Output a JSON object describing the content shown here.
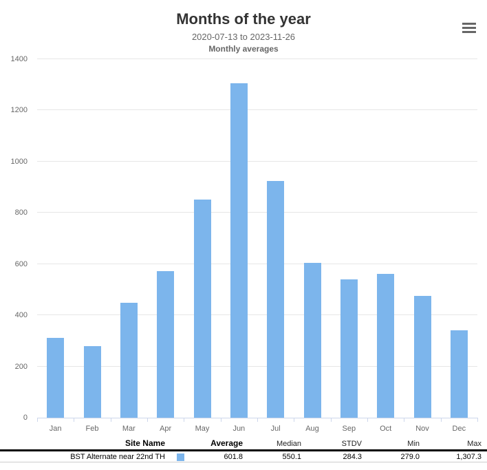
{
  "chart": {
    "title": "Months of the year",
    "subtitle": "2020-07-13 to 2023-11-26",
    "subtitle2": "Monthly averages"
  },
  "chart_data": {
    "type": "bar",
    "title": "Months of the year",
    "subtitle": "2020-07-13 to 2023-11-26",
    "caption": "Monthly averages",
    "categories": [
      "Jan",
      "Feb",
      "Mar",
      "Apr",
      "May",
      "Jun",
      "Jul",
      "Aug",
      "Sep",
      "Oct",
      "Nov",
      "Dec"
    ],
    "series": [
      {
        "name": "BST Alternate near 22nd TH",
        "color": "#7cb5ec",
        "values": [
          311,
          279,
          450,
          573,
          851,
          1307.3,
          925,
          605,
          540,
          561,
          477,
          340
        ]
      }
    ],
    "xlabel": "",
    "ylabel": "",
    "ylim": [
      0,
      1400
    ],
    "yticks": [
      0,
      200,
      400,
      600,
      800,
      1000,
      1200,
      1400
    ],
    "grid": true,
    "legend_position": "table-below",
    "stats": {
      "average": 601.8,
      "median": 550.1,
      "stdv": 284.3,
      "min": 279.0,
      "max": 1307.3
    }
  },
  "table": {
    "headers": {
      "site": "Site Name",
      "average": "Average",
      "median": "Median",
      "stdv": "STDV",
      "min": "Min",
      "max": "Max"
    },
    "row": {
      "site": "BST Alternate near 22nd TH",
      "swatch_color": "#7cb5ec",
      "average": "601.8",
      "median": "550.1",
      "stdv": "284.3",
      "min": "279.0",
      "max": "1,307.3"
    }
  },
  "colors": {
    "bar": "#7cb5ec",
    "title": "#333333",
    "subtitle": "#666666",
    "axis_label": "#666666",
    "axis_line": "#ccd6eb",
    "gridline": "#e6e6e6",
    "menu_icon": "#666666"
  }
}
